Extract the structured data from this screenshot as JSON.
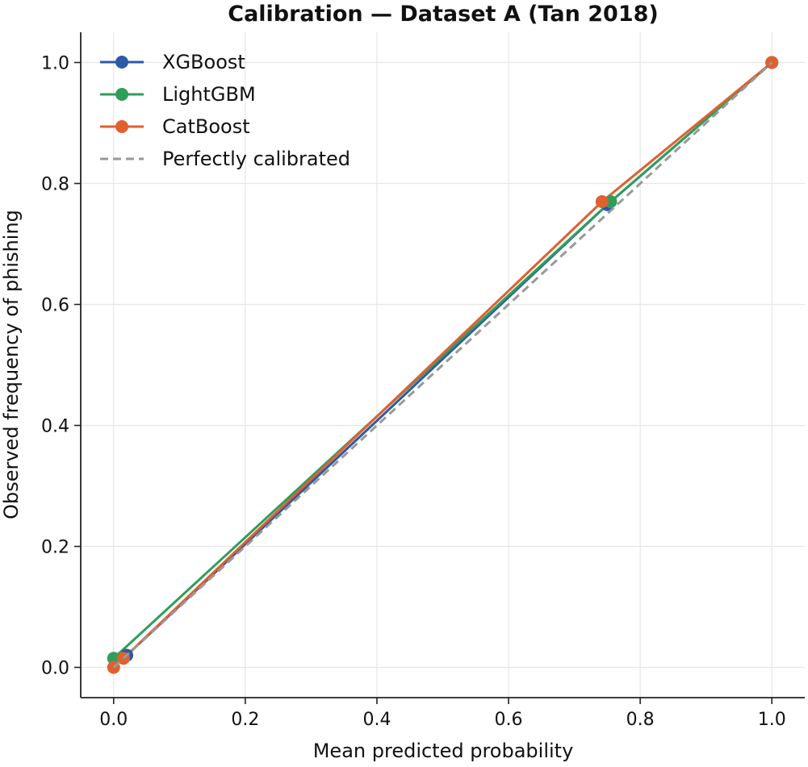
{
  "chart_data": {
    "type": "line",
    "title": "Calibration — Dataset A (Tan 2018)",
    "xlabel": "Mean predicted probability",
    "ylabel": "Observed frequency of phishing",
    "xlim": [
      -0.05,
      1.05
    ],
    "ylim": [
      -0.05,
      1.05
    ],
    "xticks": [
      "0.0",
      "0.2",
      "0.4",
      "0.6",
      "0.8",
      "1.0"
    ],
    "yticks": [
      "0.0",
      "0.2",
      "0.4",
      "0.6",
      "0.8",
      "1.0"
    ],
    "grid": true,
    "legend": "top-left",
    "series": [
      {
        "name": "XGBoost",
        "color": "#2b5aa8",
        "marker": "circle",
        "x": [
          0.02,
          0.75,
          1.0
        ],
        "y": [
          0.02,
          0.765,
          1.0
        ]
      },
      {
        "name": "LightGBM",
        "color": "#2e9e5b",
        "marker": "circle",
        "x": [
          0.0,
          0.755,
          1.0
        ],
        "y": [
          0.015,
          0.77,
          1.0
        ]
      },
      {
        "name": "CatBoost",
        "color": "#e06030",
        "marker": "circle",
        "x": [
          0.0,
          0.015,
          0.742,
          1.0
        ],
        "y": [
          0.0,
          0.015,
          0.77,
          1.0
        ]
      }
    ],
    "reference": {
      "name": "Perfectly calibrated",
      "color": "#999999",
      "style": "dashed",
      "x": [
        0.0,
        1.0
      ],
      "y": [
        0.0,
        1.0
      ]
    }
  }
}
